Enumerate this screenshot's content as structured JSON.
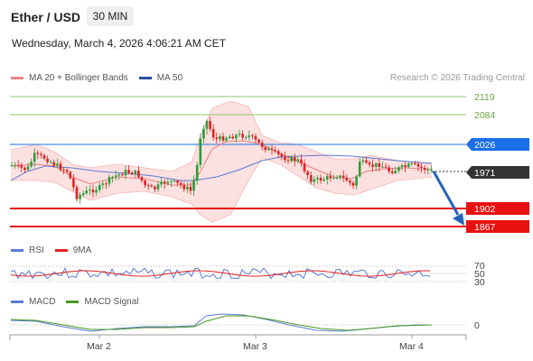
{
  "header": {
    "title": "Ether / USD",
    "timeframe": "30 MIN",
    "datetime": "Wednesday, March 4, 2026 4:06:21 AM CET"
  },
  "legend_main": [
    {
      "label": "MA 20 + Bollinger Bands",
      "color": "#f08080"
    },
    {
      "label": "MA 50",
      "color": "#2b4f9e"
    }
  ],
  "credit": "Research © 2026 Trading Central",
  "levels": [
    {
      "value": "2119",
      "color": "#8fc46b",
      "style": "text-green"
    },
    {
      "value": "2084",
      "color": "#8fc46b",
      "style": "text-green"
    },
    {
      "value": "2026",
      "color": "#1a6fe8",
      "style": "box-blue"
    },
    {
      "value": "1971",
      "color": "#333333",
      "style": "box-dark"
    },
    {
      "value": "1902",
      "color": "#e81010",
      "style": "box-red"
    },
    {
      "value": "1867",
      "color": "#e81010",
      "style": "box-red"
    }
  ],
  "rsi_panel": {
    "legend": [
      {
        "label": "RSI",
        "color": "#5b7bd5"
      },
      {
        "label": "9MA",
        "color": "#e02020"
      }
    ],
    "levels": [
      "70",
      "50",
      "30"
    ]
  },
  "macd_panel": {
    "legend": [
      {
        "label": "MACD",
        "color": "#5b7bd5"
      },
      {
        "label": "MACD Signal",
        "color": "#4a9a20"
      }
    ],
    "level": "0"
  },
  "x_axis": [
    "Mar 2",
    "Mar 3",
    "Mar 4"
  ]
}
